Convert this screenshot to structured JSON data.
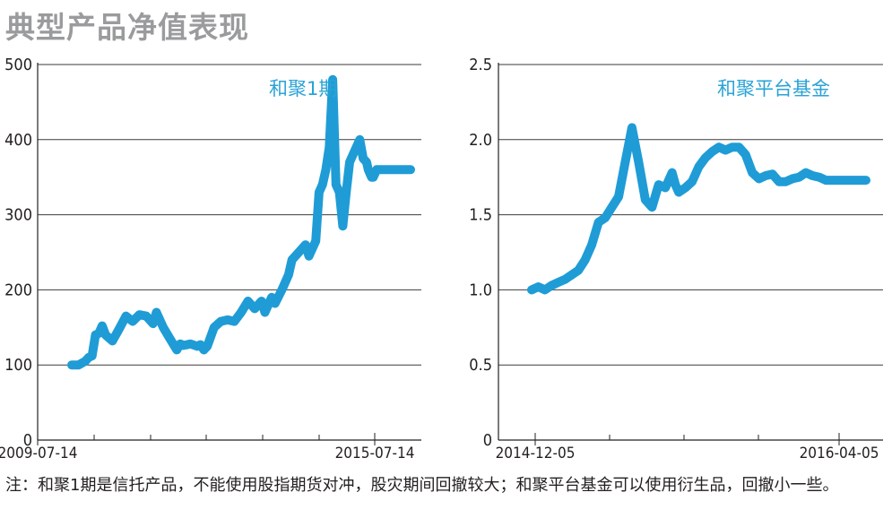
{
  "title": "典型产品净值表现",
  "note": "注：和聚1期是信托产品，不能使用股指期货对冲，股灾期间回撤较大；和聚平台基金可以使用衍生品，回撤小一些。",
  "colors": {
    "series": "#1f9cd6",
    "label": "#2aa3d6",
    "title": "#9a9b9d"
  },
  "chart_data": [
    {
      "type": "line",
      "series_name": "和聚1期",
      "ylim": [
        0,
        500
      ],
      "yticks": [
        0,
        100,
        200,
        300,
        400,
        500
      ],
      "ytick_labels": [
        "0",
        "100",
        "200",
        "300",
        "400",
        "500"
      ],
      "xtick_labels": [
        "2009-07-14",
        "2015-07-14"
      ],
      "x": [
        0,
        0.02,
        0.04,
        0.05,
        0.06,
        0.07,
        0.08,
        0.09,
        0.1,
        0.12,
        0.14,
        0.16,
        0.18,
        0.2,
        0.22,
        0.24,
        0.25,
        0.27,
        0.29,
        0.31,
        0.32,
        0.33,
        0.34,
        0.35,
        0.37,
        0.38,
        0.39,
        0.4,
        0.42,
        0.44,
        0.46,
        0.48,
        0.5,
        0.52,
        0.54,
        0.56,
        0.57,
        0.59,
        0.6,
        0.62,
        0.64,
        0.65,
        0.67,
        0.69,
        0.7,
        0.71,
        0.72,
        0.73,
        0.74,
        0.75,
        0.76,
        0.77,
        0.78,
        0.79,
        0.8,
        0.81,
        0.82,
        0.83,
        0.84,
        0.85,
        0.86,
        0.87,
        0.875,
        0.88,
        0.885,
        0.89,
        0.9,
        0.91,
        0.92,
        0.93,
        0.94,
        0.95,
        0.96,
        0.97,
        0.98,
        0.99,
        1.0
      ],
      "values": [
        100,
        100,
        105,
        110,
        112,
        140,
        142,
        152,
        140,
        132,
        148,
        165,
        158,
        167,
        165,
        155,
        170,
        150,
        135,
        120,
        128,
        126,
        127,
        128,
        125,
        127,
        120,
        125,
        150,
        158,
        160,
        158,
        170,
        185,
        175,
        185,
        170,
        190,
        182,
        200,
        220,
        240,
        250,
        260,
        245,
        255,
        265,
        330,
        340,
        360,
        390,
        480,
        340,
        330,
        285,
        330,
        370,
        380,
        390,
        400,
        375,
        370,
        360,
        355,
        350,
        350,
        360,
        360,
        360,
        360,
        360,
        360,
        360,
        360,
        360,
        360,
        360
      ],
      "legend_label": "和聚1期"
    },
    {
      "type": "line",
      "series_name": "和聚平台基金",
      "ylim": [
        0,
        2.5
      ],
      "yticks": [
        0,
        0.5,
        1.0,
        1.5,
        2.0,
        2.5
      ],
      "ytick_labels": [
        "0",
        "0.5",
        "1.0",
        "1.5",
        "2.0",
        "2.5"
      ],
      "xtick_labels": [
        "2014-12-05",
        "2016-04-05"
      ],
      "x": [
        0,
        0.02,
        0.04,
        0.06,
        0.08,
        0.1,
        0.12,
        0.14,
        0.16,
        0.18,
        0.2,
        0.22,
        0.24,
        0.26,
        0.28,
        0.3,
        0.32,
        0.34,
        0.36,
        0.38,
        0.4,
        0.42,
        0.43,
        0.44,
        0.46,
        0.48,
        0.5,
        0.52,
        0.54,
        0.56,
        0.58,
        0.6,
        0.62,
        0.64,
        0.66,
        0.68,
        0.7,
        0.72,
        0.74,
        0.76,
        0.78,
        0.8,
        0.82,
        0.84,
        0.86,
        0.88,
        0.9,
        0.92,
        0.94,
        0.96,
        0.98,
        1.0
      ],
      "values": [
        1.0,
        1.02,
        1.0,
        1.03,
        1.05,
        1.07,
        1.1,
        1.13,
        1.2,
        1.3,
        1.45,
        1.48,
        1.55,
        1.62,
        1.85,
        2.08,
        1.85,
        1.6,
        1.55,
        1.7,
        1.68,
        1.78,
        1.7,
        1.65,
        1.68,
        1.72,
        1.82,
        1.88,
        1.92,
        1.95,
        1.93,
        1.95,
        1.95,
        1.9,
        1.78,
        1.74,
        1.76,
        1.77,
        1.72,
        1.72,
        1.74,
        1.75,
        1.78,
        1.76,
        1.75,
        1.73,
        1.73,
        1.73,
        1.73,
        1.73,
        1.73,
        1.73
      ],
      "legend_label": "和聚平台基金"
    }
  ]
}
